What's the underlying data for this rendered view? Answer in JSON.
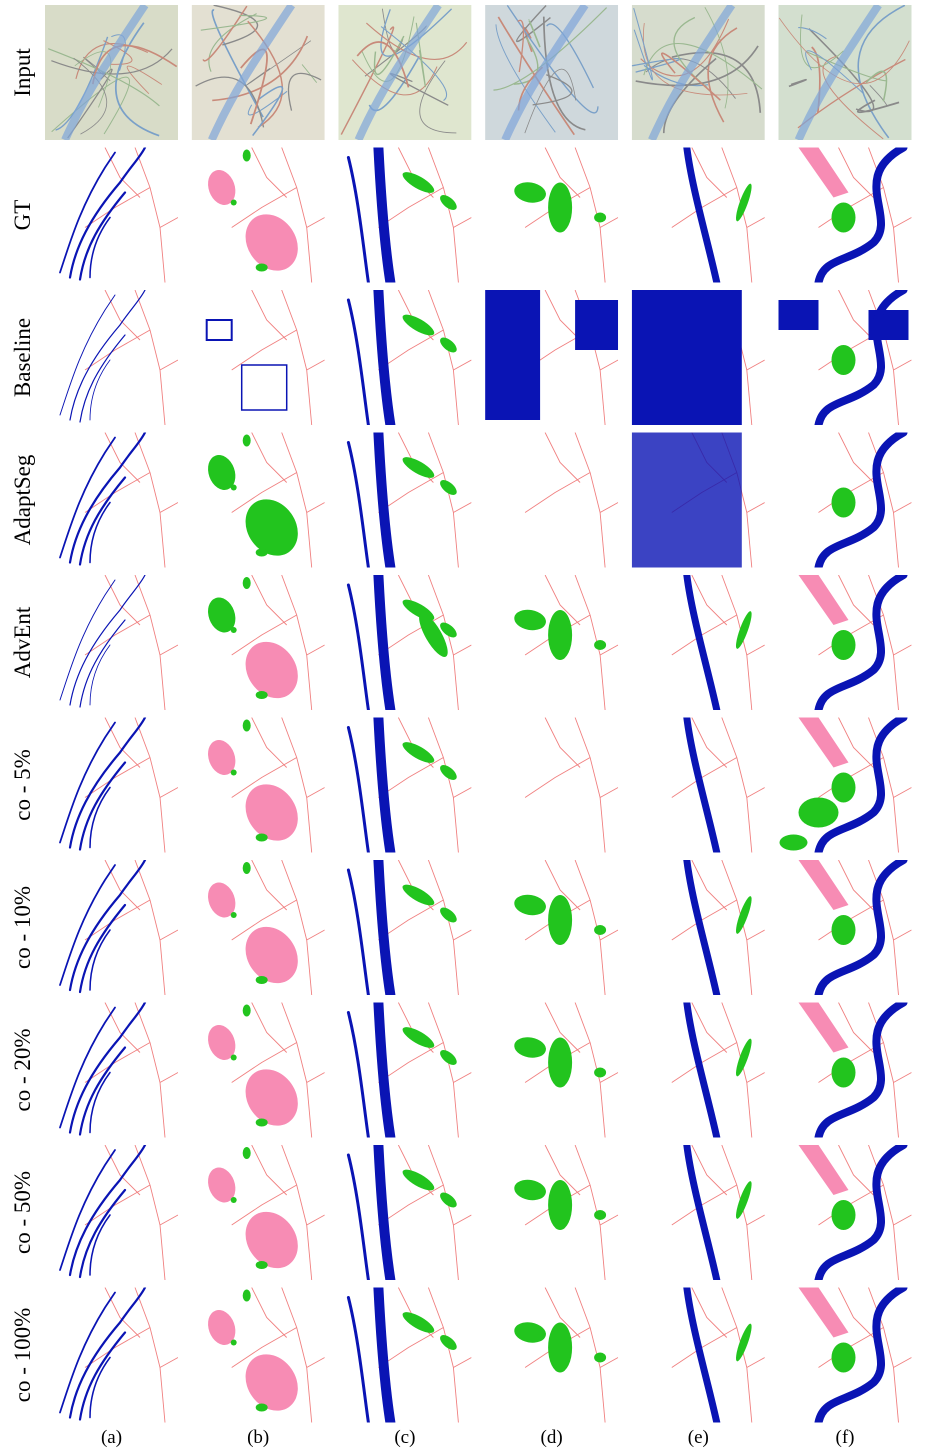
{
  "figure": {
    "rows": [
      "Input",
      "GT",
      "Baseline",
      "AdaptSeg",
      "AdvEnt",
      "co - 5%",
      "co - 10%",
      "co - 20%",
      "co - 50%",
      "co - 100%"
    ],
    "columns": [
      "(a)",
      "(b)",
      "(c)",
      "(d)",
      "(e)",
      "(f)"
    ]
  }
}
